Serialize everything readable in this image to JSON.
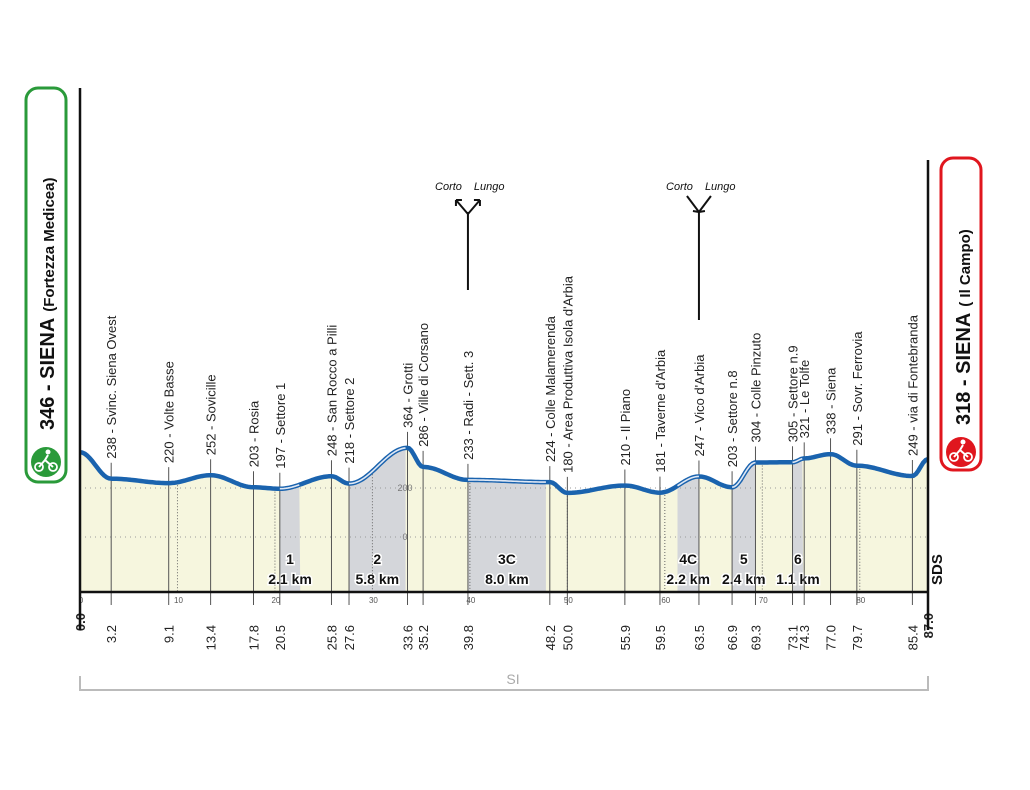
{
  "chart_data": {
    "type": "area",
    "xlabel": "",
    "ylabel": "",
    "xlim": [
      0,
      87.0
    ],
    "x_axis_ticks": [
      0,
      10,
      20,
      30,
      40,
      50,
      60,
      70,
      80
    ],
    "y_grid_ticks": [
      200,
      0
    ],
    "grid": true,
    "start": {
      "label": "346 - SIENA",
      "sub": "(Fortezza Medicea)",
      "color": "#2a9a3a"
    },
    "finish": {
      "label": "318 - SIENA",
      "sub": "( Il Campo)",
      "color": "#e0161e"
    },
    "waypoints": [
      {
        "km": 0.0,
        "elev": 346,
        "label": "",
        "km_label": "0.0"
      },
      {
        "km": 3.2,
        "elev": 238,
        "label": "238 - Svinc. Siena Ovest",
        "km_label": "3.2"
      },
      {
        "km": 9.1,
        "elev": 220,
        "label": "220 - Volte Basse",
        "km_label": "9.1"
      },
      {
        "km": 13.4,
        "elev": 252,
        "label": "252 - Sovicille",
        "km_label": "13.4"
      },
      {
        "km": 17.8,
        "elev": 203,
        "label": "203 - Rosia",
        "km_label": "17.8"
      },
      {
        "km": 20.5,
        "elev": 197,
        "label": "197 - Settore 1",
        "km_label": "20.5"
      },
      {
        "km": 25.8,
        "elev": 248,
        "label": "248 - San Rocco a Pilli",
        "km_label": "25.8"
      },
      {
        "km": 27.6,
        "elev": 218,
        "label": "218 - Settore 2",
        "km_label": "27.6"
      },
      {
        "km": 33.6,
        "elev": 364,
        "label": "364 - Grotti",
        "km_label": "33.6"
      },
      {
        "km": 35.2,
        "elev": 286,
        "label": "286 - Ville di Corsano",
        "km_label": "35.2"
      },
      {
        "km": 39.8,
        "elev": 233,
        "label": "233 - Radi - Sett. 3",
        "km_label": "39.8"
      },
      {
        "km": 48.2,
        "elev": 224,
        "label": "224 - Colle Malamerenda",
        "km_label": "48.2"
      },
      {
        "km": 50.0,
        "elev": 180,
        "label": "180 - Area Produttiva Isola d'Arbia",
        "km_label": "50.0"
      },
      {
        "km": 55.9,
        "elev": 210,
        "label": "210 - Il Piano",
        "km_label": "55.9"
      },
      {
        "km": 59.5,
        "elev": 181,
        "label": "181 - Taverne d'Arbia",
        "km_label": "59.5"
      },
      {
        "km": 63.5,
        "elev": 247,
        "label": "247 - Vico d'Arbia",
        "km_label": "63.5"
      },
      {
        "km": 66.9,
        "elev": 203,
        "label": "203 - Settore n.8",
        "km_label": "66.9"
      },
      {
        "km": 69.3,
        "elev": 304,
        "label": "304 - Colle Pinzuto",
        "km_label": "69.3"
      },
      {
        "km": 73.1,
        "elev": 305,
        "label": "305 - Settore n.9",
        "km_label": "73.1"
      },
      {
        "km": 74.3,
        "elev": 321,
        "label": "321 - Le Tolfe",
        "km_label": "74.3"
      },
      {
        "km": 77.0,
        "elev": 338,
        "label": "338 - Siena",
        "km_label": "77.0"
      },
      {
        "km": 79.7,
        "elev": 291,
        "label": "291 - Sovr. Ferrovia",
        "km_label": "79.7"
      },
      {
        "km": 85.4,
        "elev": 249,
        "label": "249 - via di Fontebranda",
        "km_label": "85.4"
      },
      {
        "km": 87.0,
        "elev": 318,
        "label": "",
        "km_label": "87.0"
      }
    ],
    "sectors": [
      {
        "id": "1",
        "length": "2.1 km",
        "start_km": 20.5,
        "end_km": 22.6
      },
      {
        "id": "2",
        "length": "5.8 km",
        "start_km": 27.6,
        "end_km": 33.4
      },
      {
        "id": "3C",
        "length": "8.0 km",
        "start_km": 39.8,
        "end_km": 47.8
      },
      {
        "id": "4C",
        "length": "2.2 km",
        "start_km": 61.3,
        "end_km": 63.5
      },
      {
        "id": "5",
        "length": "2.4 km",
        "start_km": 66.9,
        "end_km": 69.3
      },
      {
        "id": "6",
        "length": "1.1 km",
        "start_km": 73.1,
        "end_km": 74.2
      }
    ],
    "forks": [
      {
        "km": 39.8,
        "type": "split",
        "left": "Corto",
        "right": "Lungo"
      },
      {
        "km": 63.5,
        "type": "merge",
        "left": "Corto",
        "right": "Lungo"
      }
    ],
    "bracket_label": "SI",
    "logo": "SDS",
    "colors": {
      "profile": "#1a63ae",
      "fill": "#f6f6de",
      "sector": "#d4d6da"
    }
  }
}
